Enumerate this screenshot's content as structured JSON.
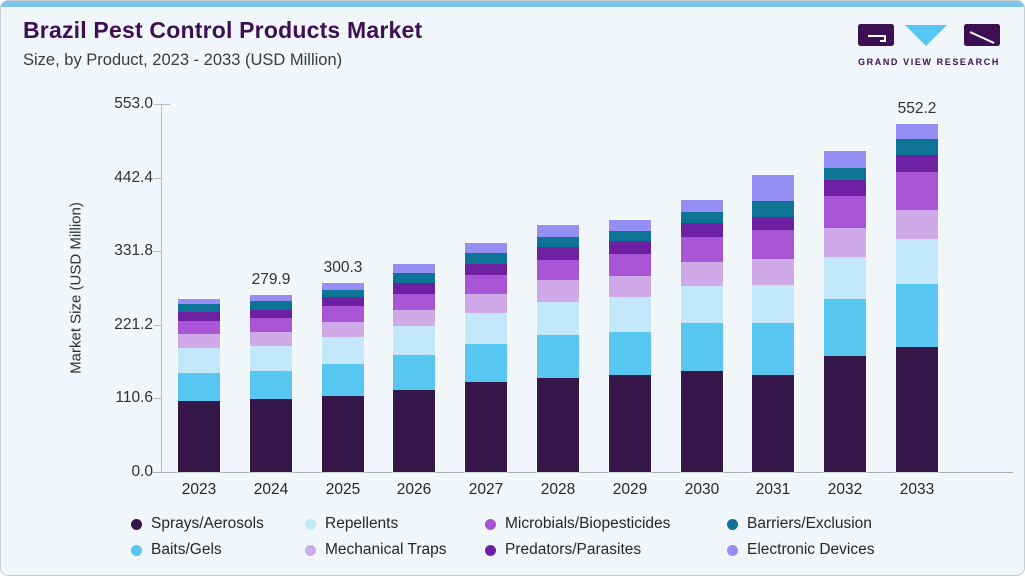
{
  "header": {
    "title": "Brazil Pest Control Products Market",
    "subtitle": "Size, by Product, 2023 - 2033 (USD Million)",
    "logo_text": "GRAND VIEW RESEARCH"
  },
  "colors": {
    "card_background": "#f1f6fa",
    "top_strip": "#7cc4e8",
    "title_text": "#3c1053",
    "subtitle_text": "#3a3a40",
    "axis_line": "#b4bcc4",
    "axis_text": "#2d3237",
    "logo_purple": "#3c1053",
    "logo_blue": "#56c7f2"
  },
  "chart_data": {
    "type": "bar",
    "stacked": true,
    "title": "Brazil Pest Control Products Market Size, by Product, 2023 - 2033 (USD Million)",
    "xlabel": "",
    "ylabel": "Market Size (USD Million)",
    "categories": [
      "2023",
      "2024",
      "2025",
      "2026",
      "2027",
      "2028",
      "2029",
      "2030",
      "2031",
      "2032",
      "2033"
    ],
    "y_ticks": [
      "0.0",
      "110.6",
      "221.2",
      "331.8",
      "442.4",
      "553.0"
    ],
    "ylim": [
      0,
      553.0
    ],
    "grid": false,
    "legend_position": "bottom",
    "bar_total_labels": {
      "2024": "279.9",
      "2025": "300.3",
      "2033": "552.2"
    },
    "series": [
      {
        "name": "Sprays/Aerosols",
        "color": "#341748",
        "values": [
          113.0,
          115.5,
          120.4,
          129.9,
          142.6,
          149.4,
          153.0,
          160.8,
          154.1,
          184.4,
          198.3
        ]
      },
      {
        "name": "Baits/Gels",
        "color": "#57c7f2",
        "values": [
          44.0,
          44.0,
          50.3,
          56.1,
          60.2,
          67.6,
          68.2,
          75.0,
          81.3,
          89.1,
          99.1
        ]
      },
      {
        "name": "Repellents",
        "color": "#c2e8f9",
        "values": [
          40.0,
          40.5,
          43.1,
          45.1,
          48.7,
          52.4,
          56.6,
          58.6,
          60.2,
          67.0,
          72.3
        ]
      },
      {
        "name": "Mechanical Traps",
        "color": "#d0a9e9",
        "values": [
          21.8,
          22.0,
          24.5,
          26.1,
          31.4,
          35.7,
          33.5,
          37.7,
          42.5,
          45.6,
          45.6
        ]
      },
      {
        "name": "Microbials/Biopesticides",
        "color": "#a855d6",
        "values": [
          20.9,
          21.4,
          24.2,
          24.7,
          29.9,
          31.4,
          34.6,
          40.9,
          45.6,
          51.4,
          60.2
        ]
      },
      {
        "name": "Predators/Parasites",
        "color": "#6e20a3",
        "values": [
          13.5,
          14.0,
          14.2,
          18.4,
          17.3,
          20.0,
          20.9,
          21.1,
          20.9,
          24.7,
          26.3
        ]
      },
      {
        "name": "Barriers/Exclusion",
        "color": "#0d7496",
        "values": [
          13.5,
          14.0,
          12.0,
          14.6,
          16.8,
          16.7,
          15.7,
          18.2,
          24.7,
          19.8,
          25.2
        ]
      },
      {
        "name": "Electronic Devices",
        "color": "#958ef5",
        "values": [
          7.4,
          8.5,
          11.6,
          14.2,
          16.8,
          18.3,
          16.9,
          18.4,
          41.3,
          26.3,
          25.2
        ]
      }
    ],
    "totals": [
      274.1,
      279.9,
      300.3,
      329.1,
      363.7,
      391.5,
      399.4,
      430.7,
      470.6,
      508.3,
      552.2
    ]
  }
}
